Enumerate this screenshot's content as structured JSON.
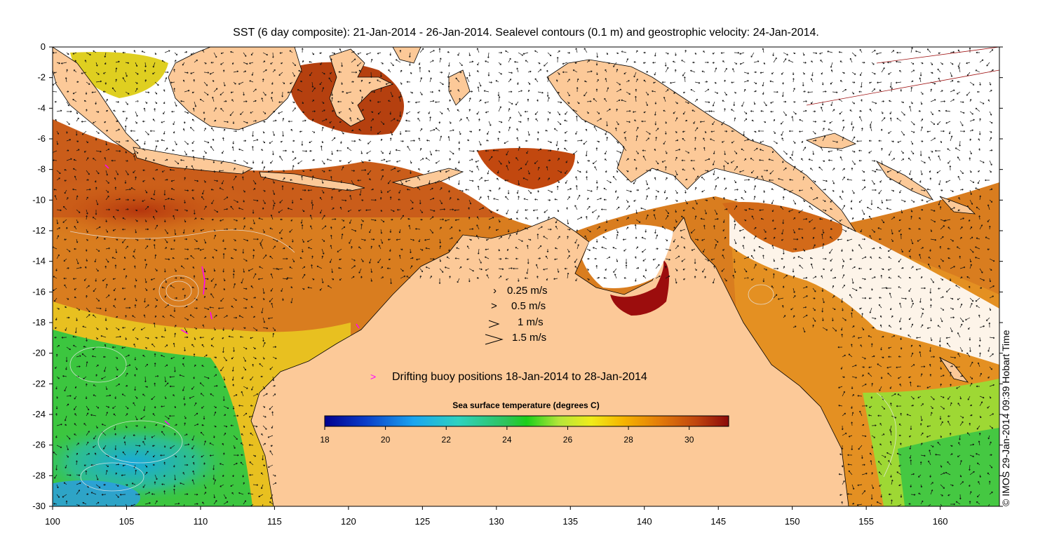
{
  "title": "SST (6 day composite): 21-Jan-2014 - 26-Jan-2014. Sealevel contours (0.1 m) and geostrophic velocity: 24-Jan-2014.",
  "credit": "© IMOS 29-Jan-2014 09:39 Hobart Time",
  "map": {
    "lon_range": [
      100,
      164
    ],
    "lat_range": [
      -30,
      0
    ],
    "x_ticks": [
      "100",
      "105",
      "110",
      "115",
      "120",
      "125",
      "130",
      "135",
      "140",
      "145",
      "150",
      "155",
      "160"
    ],
    "y_ticks": [
      "0",
      "-2",
      "-4",
      "-6",
      "-8",
      "-10",
      "-12",
      "-14",
      "-16",
      "-18",
      "-20",
      "-22",
      "-24",
      "-26",
      "-28",
      "-30"
    ]
  },
  "velocity_legend": [
    {
      "label": "0.25 m/s",
      "speed": 0.25
    },
    {
      "label": "0.5 m/s",
      "speed": 0.5
    },
    {
      "label": "1 m/s",
      "speed": 1
    },
    {
      "label": "1.5 m/s",
      "speed": 1.5
    }
  ],
  "buoy_legend": {
    "label": "Drifting buoy positions 18-Jan-2014 to 28-Jan-2014",
    "color": "#ff00ff"
  },
  "colorbar": {
    "title": "Sea surface temperature (degrees C)",
    "min": 18,
    "max": 31.3,
    "ticks": [
      "18",
      "20",
      "22",
      "24",
      "26",
      "28",
      "30"
    ]
  },
  "colors": {
    "land": "#fcc998",
    "cloud": "#ffffff"
  }
}
